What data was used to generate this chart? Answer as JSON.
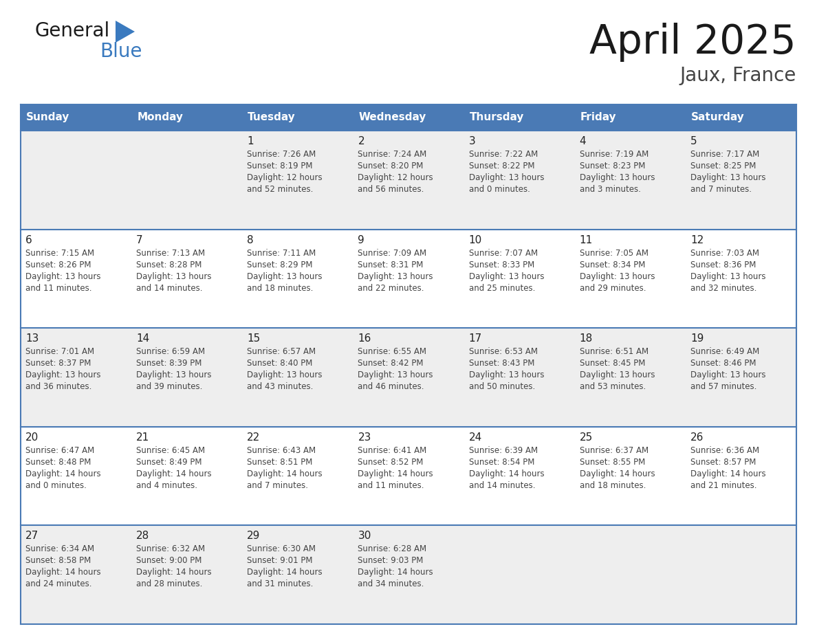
{
  "title": "April 2025",
  "subtitle": "Jaux, France",
  "days_of_week": [
    "Sunday",
    "Monday",
    "Tuesday",
    "Wednesday",
    "Thursday",
    "Friday",
    "Saturday"
  ],
  "header_bg": "#4a7ab5",
  "header_text": "#ffffff",
  "cell_bg_odd": "#eeeeee",
  "cell_bg_even": "#ffffff",
  "border_color": "#4a7ab5",
  "separator_color": "#4a7ab5",
  "text_color": "#444444",
  "day_num_color": "#222222",
  "logo_black": "#1a1a1a",
  "logo_blue": "#3a7abf",
  "weeks": [
    [
      {
        "day": "",
        "sunrise": "",
        "sunset": "",
        "daylight": ""
      },
      {
        "day": "",
        "sunrise": "",
        "sunset": "",
        "daylight": ""
      },
      {
        "day": "1",
        "sunrise": "Sunrise: 7:26 AM",
        "sunset": "Sunset: 8:19 PM",
        "daylight": "Daylight: 12 hours\nand 52 minutes."
      },
      {
        "day": "2",
        "sunrise": "Sunrise: 7:24 AM",
        "sunset": "Sunset: 8:20 PM",
        "daylight": "Daylight: 12 hours\nand 56 minutes."
      },
      {
        "day": "3",
        "sunrise": "Sunrise: 7:22 AM",
        "sunset": "Sunset: 8:22 PM",
        "daylight": "Daylight: 13 hours\nand 0 minutes."
      },
      {
        "day": "4",
        "sunrise": "Sunrise: 7:19 AM",
        "sunset": "Sunset: 8:23 PM",
        "daylight": "Daylight: 13 hours\nand 3 minutes."
      },
      {
        "day": "5",
        "sunrise": "Sunrise: 7:17 AM",
        "sunset": "Sunset: 8:25 PM",
        "daylight": "Daylight: 13 hours\nand 7 minutes."
      }
    ],
    [
      {
        "day": "6",
        "sunrise": "Sunrise: 7:15 AM",
        "sunset": "Sunset: 8:26 PM",
        "daylight": "Daylight: 13 hours\nand 11 minutes."
      },
      {
        "day": "7",
        "sunrise": "Sunrise: 7:13 AM",
        "sunset": "Sunset: 8:28 PM",
        "daylight": "Daylight: 13 hours\nand 14 minutes."
      },
      {
        "day": "8",
        "sunrise": "Sunrise: 7:11 AM",
        "sunset": "Sunset: 8:29 PM",
        "daylight": "Daylight: 13 hours\nand 18 minutes."
      },
      {
        "day": "9",
        "sunrise": "Sunrise: 7:09 AM",
        "sunset": "Sunset: 8:31 PM",
        "daylight": "Daylight: 13 hours\nand 22 minutes."
      },
      {
        "day": "10",
        "sunrise": "Sunrise: 7:07 AM",
        "sunset": "Sunset: 8:33 PM",
        "daylight": "Daylight: 13 hours\nand 25 minutes."
      },
      {
        "day": "11",
        "sunrise": "Sunrise: 7:05 AM",
        "sunset": "Sunset: 8:34 PM",
        "daylight": "Daylight: 13 hours\nand 29 minutes."
      },
      {
        "day": "12",
        "sunrise": "Sunrise: 7:03 AM",
        "sunset": "Sunset: 8:36 PM",
        "daylight": "Daylight: 13 hours\nand 32 minutes."
      }
    ],
    [
      {
        "day": "13",
        "sunrise": "Sunrise: 7:01 AM",
        "sunset": "Sunset: 8:37 PM",
        "daylight": "Daylight: 13 hours\nand 36 minutes."
      },
      {
        "day": "14",
        "sunrise": "Sunrise: 6:59 AM",
        "sunset": "Sunset: 8:39 PM",
        "daylight": "Daylight: 13 hours\nand 39 minutes."
      },
      {
        "day": "15",
        "sunrise": "Sunrise: 6:57 AM",
        "sunset": "Sunset: 8:40 PM",
        "daylight": "Daylight: 13 hours\nand 43 minutes."
      },
      {
        "day": "16",
        "sunrise": "Sunrise: 6:55 AM",
        "sunset": "Sunset: 8:42 PM",
        "daylight": "Daylight: 13 hours\nand 46 minutes."
      },
      {
        "day": "17",
        "sunrise": "Sunrise: 6:53 AM",
        "sunset": "Sunset: 8:43 PM",
        "daylight": "Daylight: 13 hours\nand 50 minutes."
      },
      {
        "day": "18",
        "sunrise": "Sunrise: 6:51 AM",
        "sunset": "Sunset: 8:45 PM",
        "daylight": "Daylight: 13 hours\nand 53 minutes."
      },
      {
        "day": "19",
        "sunrise": "Sunrise: 6:49 AM",
        "sunset": "Sunset: 8:46 PM",
        "daylight": "Daylight: 13 hours\nand 57 minutes."
      }
    ],
    [
      {
        "day": "20",
        "sunrise": "Sunrise: 6:47 AM",
        "sunset": "Sunset: 8:48 PM",
        "daylight": "Daylight: 14 hours\nand 0 minutes."
      },
      {
        "day": "21",
        "sunrise": "Sunrise: 6:45 AM",
        "sunset": "Sunset: 8:49 PM",
        "daylight": "Daylight: 14 hours\nand 4 minutes."
      },
      {
        "day": "22",
        "sunrise": "Sunrise: 6:43 AM",
        "sunset": "Sunset: 8:51 PM",
        "daylight": "Daylight: 14 hours\nand 7 minutes."
      },
      {
        "day": "23",
        "sunrise": "Sunrise: 6:41 AM",
        "sunset": "Sunset: 8:52 PM",
        "daylight": "Daylight: 14 hours\nand 11 minutes."
      },
      {
        "day": "24",
        "sunrise": "Sunrise: 6:39 AM",
        "sunset": "Sunset: 8:54 PM",
        "daylight": "Daylight: 14 hours\nand 14 minutes."
      },
      {
        "day": "25",
        "sunrise": "Sunrise: 6:37 AM",
        "sunset": "Sunset: 8:55 PM",
        "daylight": "Daylight: 14 hours\nand 18 minutes."
      },
      {
        "day": "26",
        "sunrise": "Sunrise: 6:36 AM",
        "sunset": "Sunset: 8:57 PM",
        "daylight": "Daylight: 14 hours\nand 21 minutes."
      }
    ],
    [
      {
        "day": "27",
        "sunrise": "Sunrise: 6:34 AM",
        "sunset": "Sunset: 8:58 PM",
        "daylight": "Daylight: 14 hours\nand 24 minutes."
      },
      {
        "day": "28",
        "sunrise": "Sunrise: 6:32 AM",
        "sunset": "Sunset: 9:00 PM",
        "daylight": "Daylight: 14 hours\nand 28 minutes."
      },
      {
        "day": "29",
        "sunrise": "Sunrise: 6:30 AM",
        "sunset": "Sunset: 9:01 PM",
        "daylight": "Daylight: 14 hours\nand 31 minutes."
      },
      {
        "day": "30",
        "sunrise": "Sunrise: 6:28 AM",
        "sunset": "Sunset: 9:03 PM",
        "daylight": "Daylight: 14 hours\nand 34 minutes."
      },
      {
        "day": "",
        "sunrise": "",
        "sunset": "",
        "daylight": ""
      },
      {
        "day": "",
        "sunrise": "",
        "sunset": "",
        "daylight": ""
      },
      {
        "day": "",
        "sunrise": "",
        "sunset": "",
        "daylight": ""
      }
    ]
  ]
}
